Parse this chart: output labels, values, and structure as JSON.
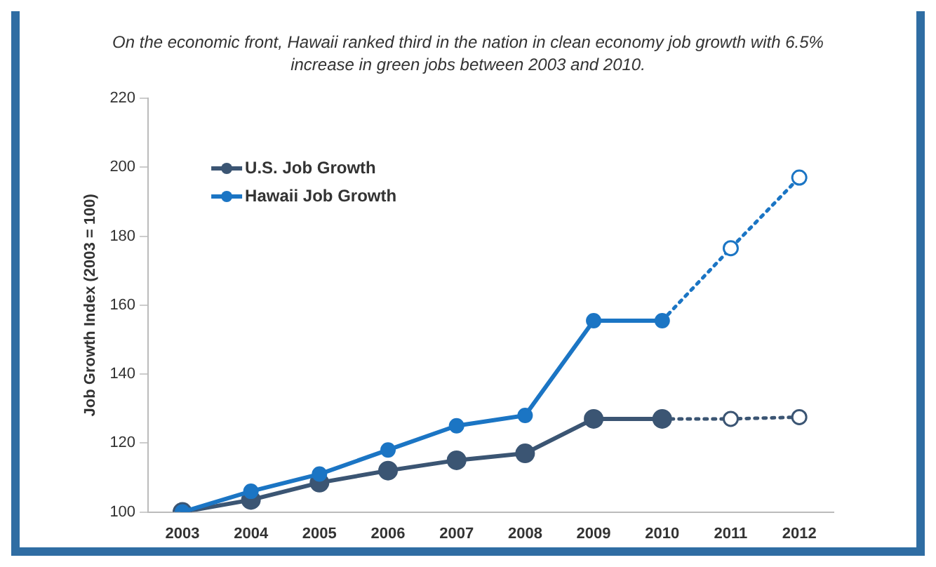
{
  "chart_data": {
    "type": "line",
    "title": "On the economic front, Hawaii ranked third in the nation in clean economy job growth with 6.5% increase in green jobs between 2003 and 2010.",
    "ylabel": "Job Growth Index (2003 = 100)",
    "categories": [
      "2003",
      "2004",
      "2005",
      "2006",
      "2007",
      "2008",
      "2009",
      "2010",
      "2011",
      "2012"
    ],
    "series": [
      {
        "name": "U.S. Job Growth",
        "color": "#3b5573",
        "values": [
          100,
          103.5,
          108.5,
          112,
          115,
          117,
          127,
          127,
          null,
          null
        ]
      },
      {
        "name": "Hawaii Job Growth",
        "color": "#1b75c4",
        "values": [
          100,
          106,
          111,
          118,
          125,
          128,
          155.5,
          155.5,
          null,
          null
        ]
      },
      {
        "color": "#3b5573",
        "line_style": "dotted",
        "values": [
          null,
          null,
          null,
          null,
          null,
          null,
          null,
          127,
          127,
          127.5
        ]
      },
      {
        "color": "#1b75c4",
        "line_style": "dotted",
        "values": [
          null,
          null,
          null,
          null,
          null,
          null,
          null,
          155.5,
          176.5,
          197
        ]
      }
    ],
    "ylim": [
      100,
      220
    ],
    "yticks": [
      100,
      120,
      140,
      160,
      180,
      200,
      220
    ],
    "grid": false,
    "legend": "top left",
    "marker": "circle",
    "line_style": "solid"
  }
}
